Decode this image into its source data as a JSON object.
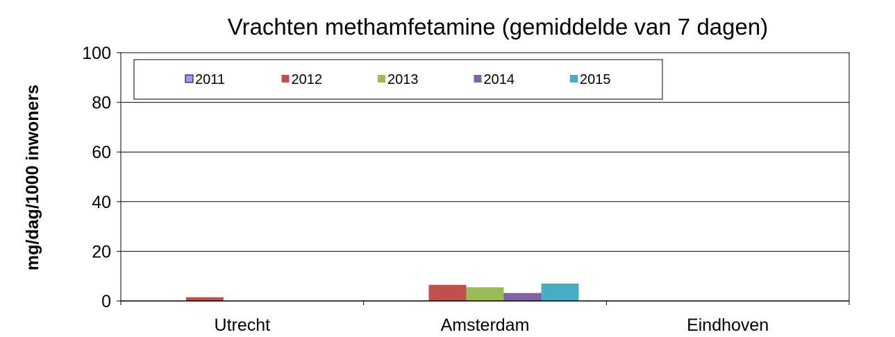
{
  "chart_data": {
    "type": "bar",
    "title": "Vrachten methamfetamine (gemiddelde van 7 dagen)",
    "xlabel": "",
    "ylabel": "mg/dag/1000 inwoners",
    "ylim": [
      0,
      100
    ],
    "yticks": [
      "0",
      "20",
      "40",
      "60",
      "80",
      "100"
    ],
    "categories": [
      "Utrecht",
      "Amsterdam",
      "Eindhoven"
    ],
    "series": [
      {
        "name": "2011",
        "color": "#9999ff",
        "values": [
          0,
          0,
          0
        ]
      },
      {
        "name": "2012",
        "color": "#c0504d",
        "values": [
          1.5,
          6.5,
          0
        ]
      },
      {
        "name": "2013",
        "color": "#9bbb59",
        "values": [
          0,
          5.5,
          0
        ]
      },
      {
        "name": "2014",
        "color": "#8064a2",
        "values": [
          0,
          3.2,
          0
        ]
      },
      {
        "name": "2015",
        "color": "#4bacc6",
        "values": [
          0,
          7.0,
          0
        ]
      }
    ],
    "grid": true,
    "legend_position": "top-left"
  }
}
